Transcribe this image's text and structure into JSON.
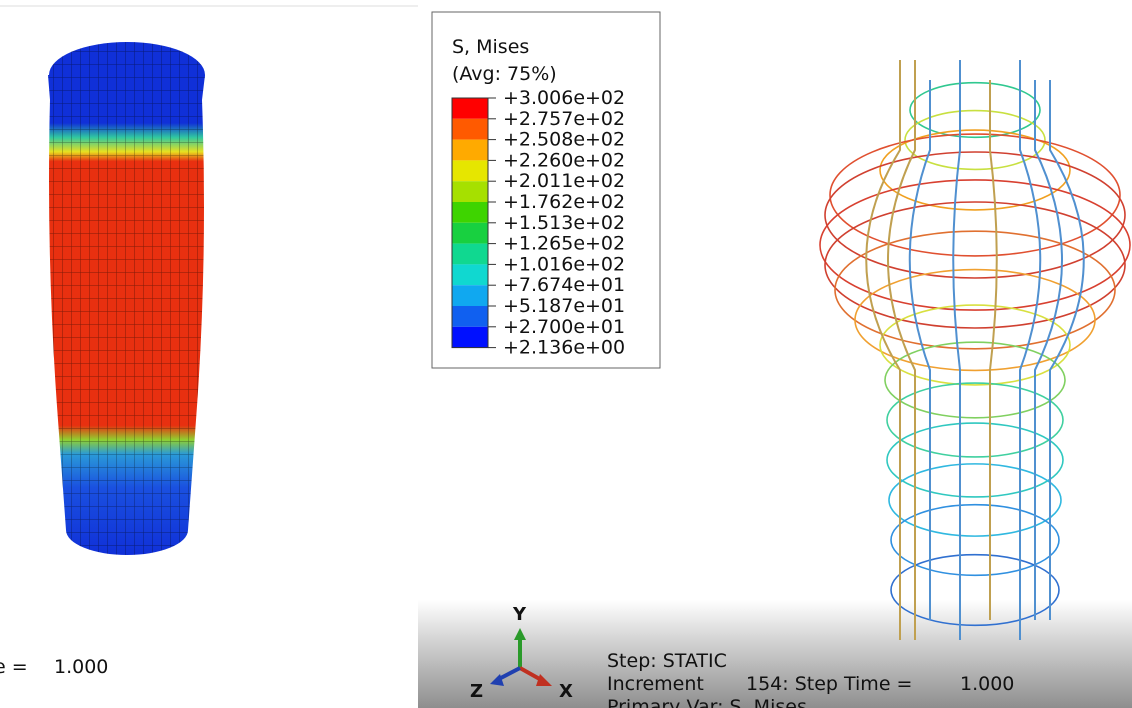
{
  "legend": {
    "title": "S, Mises",
    "subtitle": "(Avg: 75%)",
    "labels": [
      "+3.006e+02",
      "+2.757e+02",
      "+2.508e+02",
      "+2.260e+02",
      "+2.011e+02",
      "+1.762e+02",
      "+1.513e+02",
      "+1.265e+02",
      "+1.016e+02",
      "+7.674e+01",
      "+5.187e+01",
      "+2.700e+01",
      "+2.136e+00"
    ]
  },
  "left_view": {
    "time_label": "e =",
    "time_value": "1.000"
  },
  "triad": {
    "y": "Y",
    "z": "Z",
    "x": "X"
  },
  "status": {
    "step": "Step: STATIC",
    "increment": "Increment",
    "increment_value": "154: Step Time =",
    "time_value": "1.000",
    "primary_var": "Primary Var: S, Mises"
  }
}
